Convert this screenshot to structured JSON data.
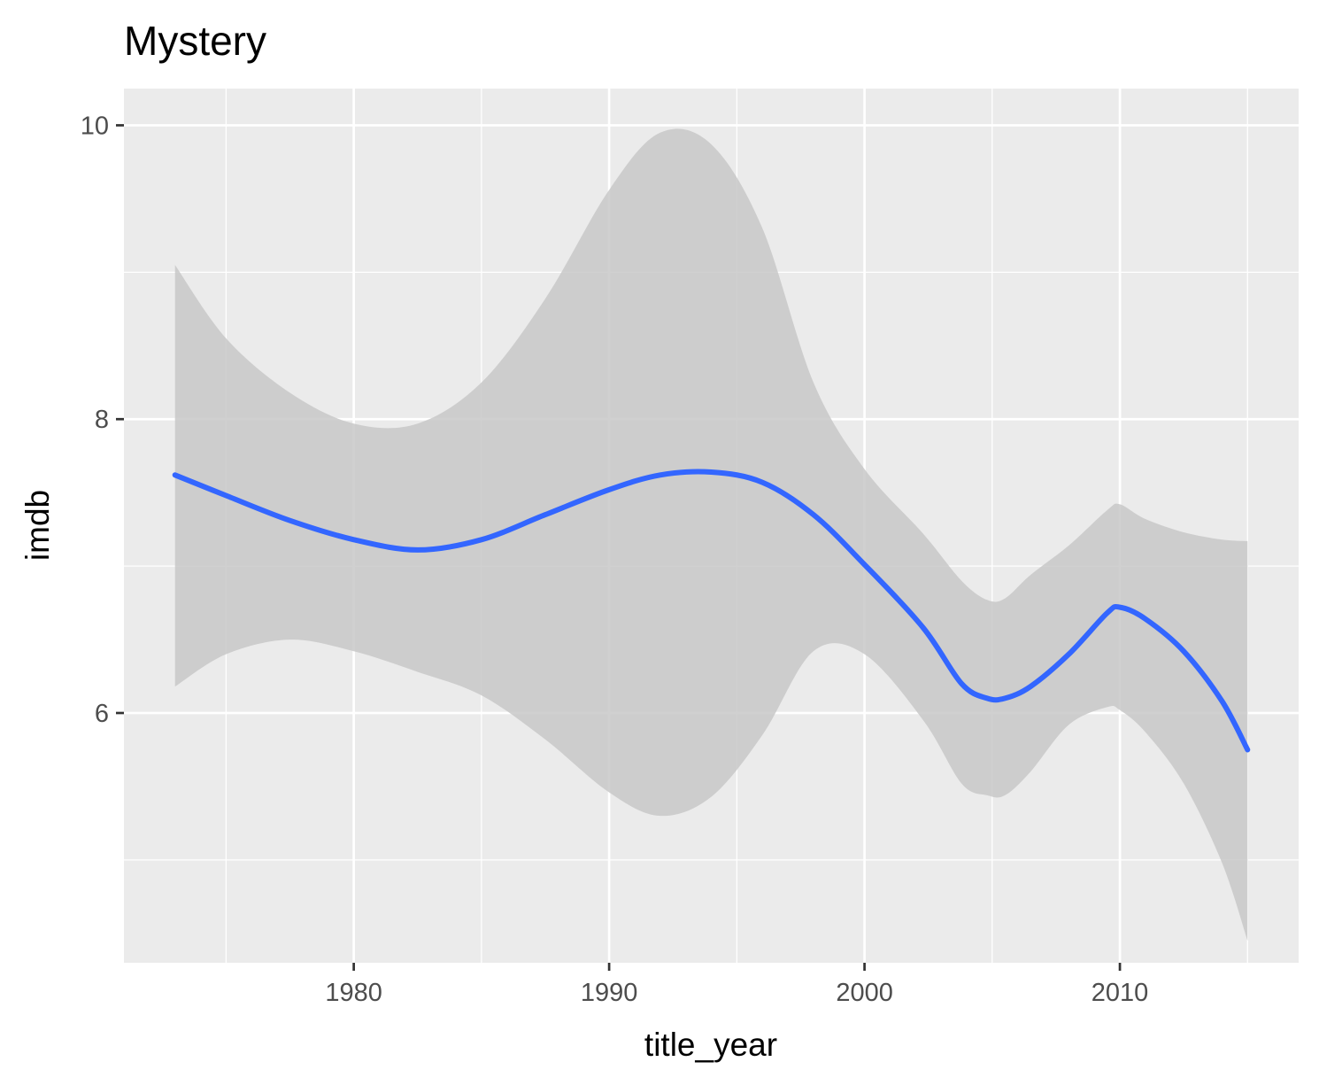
{
  "chart_data": {
    "type": "line",
    "title": "Mystery",
    "xlabel": "title_year",
    "ylabel": "imdb",
    "xlim": [
      1971,
      2017
    ],
    "ylim": [
      4.3,
      10.25
    ],
    "x_ticks": [
      1980,
      1990,
      2000,
      2010
    ],
    "x_tick_labels": [
      "1980",
      "1990",
      "2000",
      "2010"
    ],
    "x_minor_ticks": [
      1975,
      1985,
      1995,
      2005,
      2015
    ],
    "y_ticks": [
      6,
      8,
      10
    ],
    "y_tick_labels": [
      "6",
      "8",
      "10"
    ],
    "y_minor_ticks": [
      5,
      7,
      9
    ],
    "grid": true,
    "legend": "none",
    "colors": {
      "line": "#3366FF",
      "ribbon": "#C8C8C8",
      "panel": "#EBEBEB",
      "grid": "#FFFFFF"
    },
    "series": [
      {
        "x": [
          1973,
          1975,
          1977.5,
          1980,
          1982.5,
          1985,
          1987.5,
          1990,
          1992,
          1994,
          1996,
          1998,
          2000,
          2002.3,
          2003.8,
          2004.8,
          2005.5,
          2006.5,
          2008,
          2009.5,
          2010,
          2011,
          2012.5,
          2014,
          2015
        ],
        "y": [
          7.62,
          7.48,
          7.31,
          7.18,
          7.11,
          7.18,
          7.35,
          7.52,
          7.62,
          7.64,
          7.57,
          7.35,
          7.01,
          6.58,
          6.2,
          6.1,
          6.1,
          6.18,
          6.4,
          6.68,
          6.72,
          6.64,
          6.42,
          6.08,
          5.75
        ],
        "lower": [
          6.18,
          6.4,
          6.5,
          6.42,
          6.28,
          6.12,
          5.82,
          5.46,
          5.3,
          5.43,
          5.85,
          6.42,
          6.4,
          5.95,
          5.52,
          5.44,
          5.44,
          5.6,
          5.92,
          6.04,
          6.02,
          5.87,
          5.52,
          4.98,
          4.45
        ],
        "upper": [
          9.05,
          8.55,
          8.18,
          7.97,
          7.97,
          8.25,
          8.82,
          9.56,
          9.95,
          9.87,
          9.3,
          8.25,
          7.66,
          7.22,
          6.9,
          6.77,
          6.78,
          6.94,
          7.14,
          7.38,
          7.42,
          7.32,
          7.23,
          7.18,
          7.17
        ]
      }
    ]
  }
}
